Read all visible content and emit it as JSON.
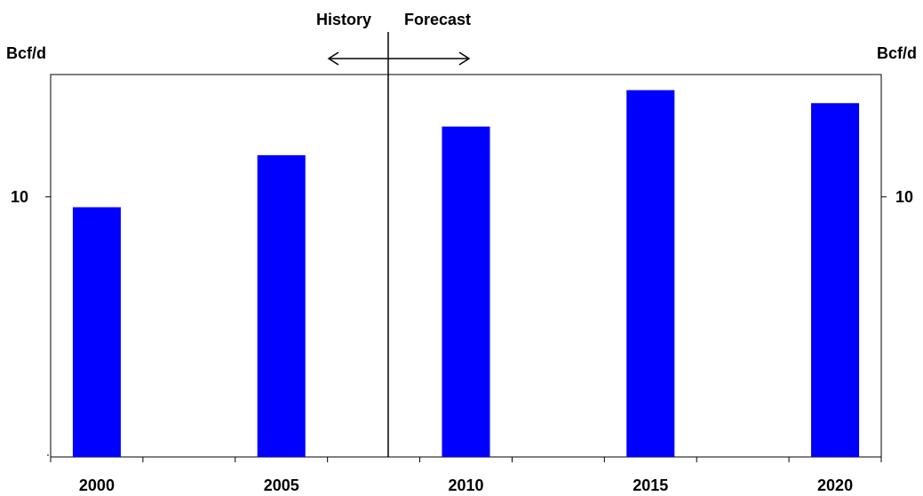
{
  "chart_data": {
    "type": "bar",
    "categories": [
      "2000",
      "2005",
      "2010",
      "2015",
      "2020"
    ],
    "values": [
      9.6,
      11.6,
      12.7,
      14.1,
      13.6
    ],
    "ylabel_left": "Bcf/d",
    "ylabel_right": "Bcf/d",
    "y_ticks": [
      10
    ],
    "ylim": [
      0,
      14.7
    ],
    "grid": false,
    "bar_color": "#0000ff",
    "divider": {
      "left_label": "History",
      "right_label": "Forecast"
    }
  }
}
